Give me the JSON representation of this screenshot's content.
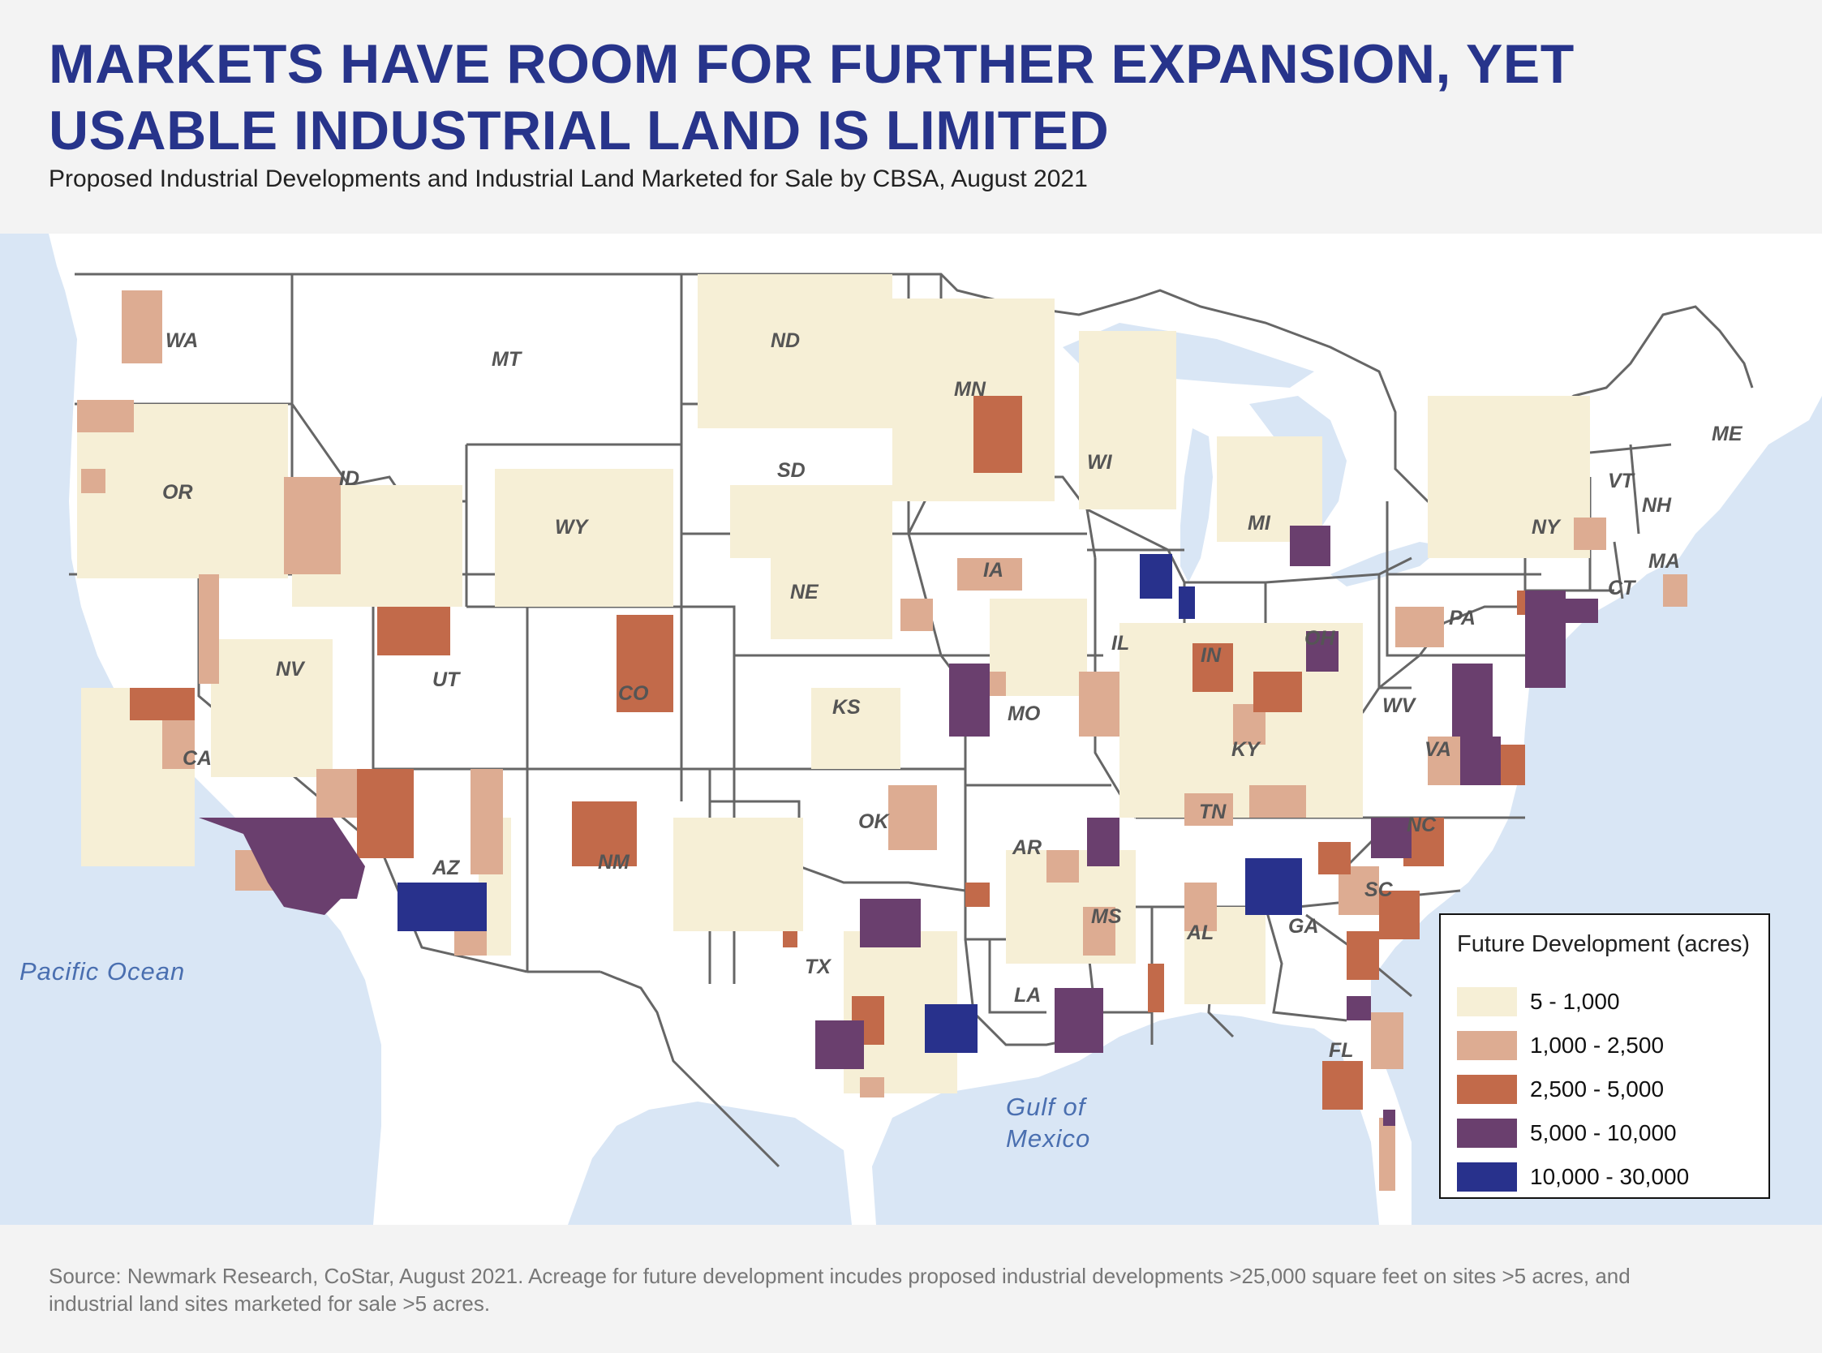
{
  "header": {
    "title": "MARKETS HAVE ROOM FOR FURTHER EXPANSION, YET USABLE INDUSTRIAL LAND IS LIMITED",
    "subtitle": "Proposed Industrial Developments and Industrial Land Marketed for Sale by CBSA, August 2021"
  },
  "map": {
    "state_labels": [
      "WA",
      "OR",
      "CA",
      "NV",
      "ID",
      "MT",
      "WY",
      "UT",
      "AZ",
      "CO",
      "NM",
      "ND",
      "SD",
      "NE",
      "KS",
      "OK",
      "TX",
      "MN",
      "IA",
      "MO",
      "AR",
      "LA",
      "WI",
      "IL",
      "MI",
      "IN",
      "OH",
      "KY",
      "TN",
      "MS",
      "AL",
      "GA",
      "FL",
      "SC",
      "NC",
      "VA",
      "WV",
      "PA",
      "NY",
      "VT",
      "NH",
      "ME",
      "MA",
      "CT"
    ],
    "water_labels": {
      "pacific": "Pacific Ocean",
      "gulf_line1": "Gulf of",
      "gulf_line2": "Mexico"
    },
    "colors": {
      "water": "#d9e6f5",
      "land": "#ffffff",
      "border": "#666666"
    }
  },
  "legend": {
    "title": "Future Development (acres)",
    "items": [
      {
        "label": "5 - 1,000",
        "color": "#f6efd6"
      },
      {
        "label": "1,000 - 2,500",
        "color": "#ddac92"
      },
      {
        "label": "2,500 - 5,000",
        "color": "#c26a4a"
      },
      {
        "label": "5,000 - 10,000",
        "color": "#6a3f6e"
      },
      {
        "label": "10,000 - 30,000",
        "color": "#28318c"
      }
    ]
  },
  "footer": {
    "source": "Source: Newmark Research, CoStar, August 2021. Acreage for future development incudes proposed industrial developments >25,000 square feet on sites >5 acres, and industrial land sites marketed for sale >5 acres."
  }
}
